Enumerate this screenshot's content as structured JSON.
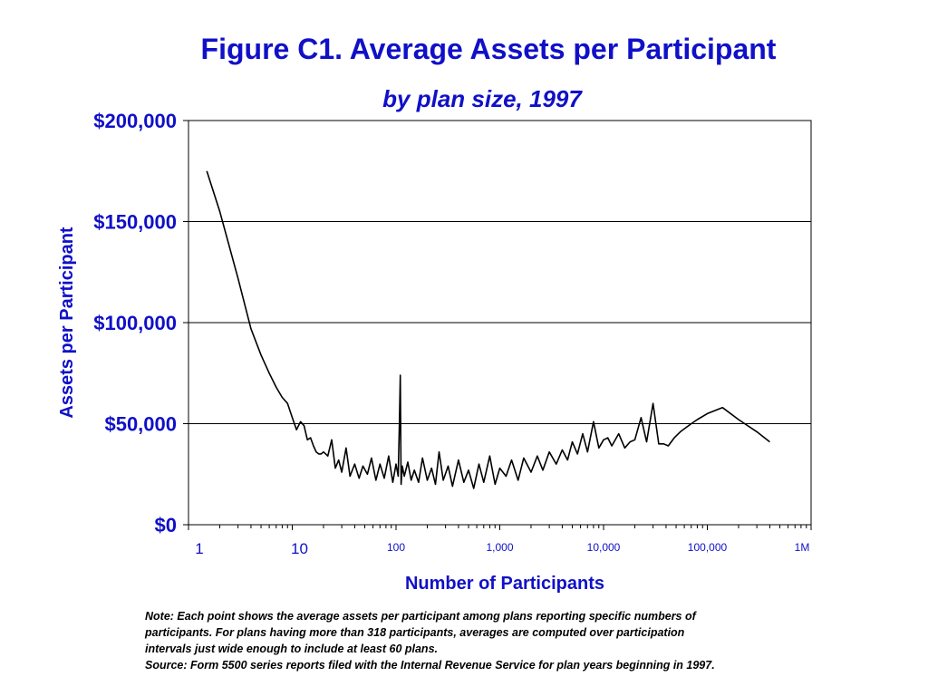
{
  "title": "Figure C1. Average Assets per Participant",
  "subtitle": "by plan size, 1997",
  "chart_data": {
    "type": "line",
    "title": "Figure C1. Average Assets per Participant",
    "subtitle": "by plan size, 1997",
    "xlabel": "Number of Participants",
    "ylabel": "Assets per Participant",
    "xscale": "log",
    "xlim": [
      1,
      1000000
    ],
    "ylim": [
      0,
      200000
    ],
    "grid": "horizontal",
    "y_ticks": [
      0,
      50000,
      100000,
      150000,
      200000
    ],
    "y_tick_labels": [
      "$0",
      "$50,000",
      "$100,000",
      "$150,000",
      "$200,000"
    ],
    "x_ticks": [
      1,
      10,
      100,
      1000,
      10000,
      100000,
      1000000
    ],
    "x_tick_labels": [
      "1",
      "10",
      "100",
      "1,000",
      "10,000",
      "100,000",
      "1M"
    ],
    "series": [
      {
        "name": "Average assets per participant",
        "color": "#000000",
        "x": [
          1.5,
          2,
          3,
          4,
          5,
          6,
          7,
          8,
          9,
          10,
          11,
          12,
          13,
          14,
          15,
          16,
          17,
          18,
          19,
          20,
          22,
          24,
          26,
          28,
          30,
          33,
          36,
          40,
          44,
          48,
          53,
          58,
          64,
          70,
          77,
          85,
          93,
          100,
          105,
          108,
          110,
          112,
          115,
          120,
          130,
          140,
          150,
          165,
          180,
          200,
          220,
          240,
          260,
          285,
          318,
          350,
          400,
          450,
          500,
          560,
          630,
          700,
          800,
          900,
          1000,
          1150,
          1300,
          1500,
          1700,
          2000,
          2300,
          2600,
          3000,
          3500,
          4000,
          4500,
          5000,
          5600,
          6300,
          7000,
          8000,
          9000,
          10000,
          11000,
          12000,
          14000,
          16000,
          18000,
          20000,
          23000,
          26000,
          30000,
          34000,
          38000,
          42000,
          48000,
          55000,
          62000,
          70000,
          80000,
          100000,
          140000,
          200000,
          300000,
          400000
        ],
        "values": [
          175000,
          155000,
          122000,
          97000,
          84000,
          75000,
          68000,
          63000,
          60000,
          53000,
          47000,
          51000,
          49000,
          42000,
          43000,
          39000,
          36000,
          35000,
          35000,
          36000,
          34000,
          42000,
          28000,
          32000,
          26000,
          38000,
          24000,
          30000,
          23000,
          29000,
          25000,
          33000,
          22000,
          30000,
          23000,
          34000,
          21000,
          30000,
          24000,
          52000,
          74000,
          20000,
          29000,
          24000,
          31000,
          22000,
          27000,
          21000,
          33000,
          22000,
          28000,
          20000,
          36000,
          22000,
          29000,
          19000,
          32000,
          21000,
          27000,
          18000,
          30000,
          21000,
          34000,
          20000,
          28000,
          24000,
          32000,
          22000,
          33000,
          26000,
          34000,
          27000,
          36000,
          30000,
          37000,
          32000,
          41000,
          35000,
          45000,
          36000,
          51000,
          38000,
          42000,
          43000,
          39000,
          45000,
          38000,
          41000,
          42000,
          53000,
          41000,
          60000,
          40000,
          40000,
          39000,
          43000,
          46000,
          48000,
          50000,
          52000,
          55000,
          58000,
          52000,
          46000,
          41000
        ]
      }
    ],
    "annotations": []
  },
  "notes": {
    "line1": "Note: Each point shows the average assets per participant among plans reporting specific numbers of",
    "line2": "participants.  For plans having more than 318 participants, averages are computed over participation",
    "line3": "intervals just wide enough to include at least 60 plans.",
    "source": "Source: Form 5500 series reports filed with the Internal Revenue Service for plan years beginning in 1997."
  }
}
